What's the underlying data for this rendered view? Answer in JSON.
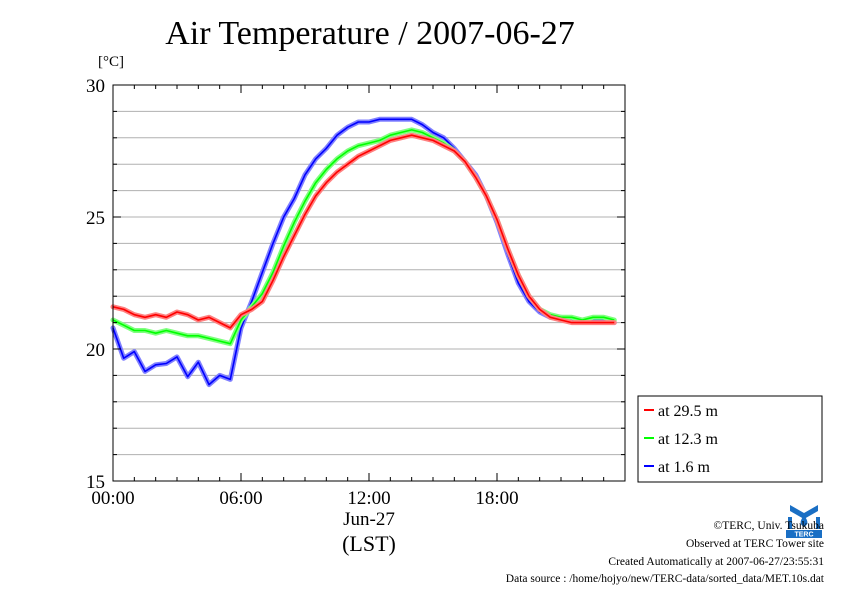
{
  "page": {
    "title": "Air Temperature / 2007-06-27",
    "unit_label": "[°C]"
  },
  "chart_data": {
    "type": "line",
    "title": "Air Temperature / 2007-06-27",
    "ylabel": "[°C]",
    "xlabel": "(LST)",
    "x_date_label": "Jun-27",
    "xlim": [
      "00:00",
      "24:00"
    ],
    "ylim": [
      15,
      30
    ],
    "x_ticks": [
      "00:00",
      "06:00",
      "12:00",
      "18:00"
    ],
    "y_ticks": [
      "15",
      "20",
      "25",
      "30"
    ],
    "grid": true,
    "legend_position": "bottom-right, outside plot",
    "x_hours": [
      0,
      0.5,
      1,
      1.5,
      2,
      2.5,
      3,
      3.5,
      4,
      4.5,
      5,
      5.5,
      6,
      6.5,
      7,
      7.5,
      8,
      8.5,
      9,
      9.5,
      10,
      10.5,
      11,
      11.5,
      12,
      12.5,
      13,
      13.5,
      14,
      14.5,
      15,
      15.5,
      16,
      16.5,
      17,
      17.5,
      18,
      18.5,
      19,
      19.5,
      20,
      20.5,
      21,
      21.5,
      22,
      22.5,
      23,
      23.5
    ],
    "series": [
      {
        "name": "at 29.5 m",
        "color": "#ff0000",
        "values": [
          21.6,
          21.5,
          21.3,
          21.2,
          21.3,
          21.2,
          21.4,
          21.3,
          21.1,
          21.2,
          21.0,
          20.8,
          21.3,
          21.5,
          21.8,
          22.6,
          23.5,
          24.3,
          25.1,
          25.8,
          26.3,
          26.7,
          27.0,
          27.3,
          27.5,
          27.7,
          27.9,
          28.0,
          28.1,
          28.0,
          27.9,
          27.7,
          27.5,
          27.1,
          26.5,
          25.8,
          24.9,
          23.8,
          22.8,
          22.0,
          21.5,
          21.2,
          21.1,
          21.0,
          21.0,
          21.0,
          21.0,
          21.0
        ]
      },
      {
        "name": "at 12.3 m",
        "color": "#00ff00",
        "values": [
          21.1,
          20.9,
          20.7,
          20.7,
          20.6,
          20.7,
          20.6,
          20.5,
          20.5,
          20.4,
          20.3,
          20.2,
          21.1,
          21.6,
          22.1,
          22.9,
          23.9,
          24.8,
          25.6,
          26.3,
          26.8,
          27.2,
          27.5,
          27.7,
          27.8,
          27.9,
          28.1,
          28.2,
          28.3,
          28.2,
          28.0,
          27.8,
          27.5,
          27.1,
          26.5,
          25.8,
          24.9,
          23.8,
          22.8,
          22.0,
          21.5,
          21.3,
          21.2,
          21.2,
          21.1,
          21.2,
          21.2,
          21.1
        ]
      },
      {
        "name": "at 1.6 m",
        "color": "#0000ff",
        "values": [
          20.8,
          20.0,
          19.7,
          19.5,
          19.2,
          19.8,
          19.5,
          19.3,
          19.3,
          19.0,
          18.8,
          19.2,
          20.8,
          21.8,
          22.9,
          24.0,
          25.0,
          25.7,
          26.6,
          27.2,
          27.6,
          28.1,
          28.4,
          28.6,
          28.6,
          28.7,
          28.7,
          28.7,
          28.7,
          28.5,
          28.2,
          28.0,
          27.6,
          27.1,
          26.6,
          25.8,
          24.8,
          23.6,
          22.5,
          21.8,
          21.4,
          21.2,
          21.2,
          21.1,
          21.1,
          21.1,
          21.1,
          21.0
        ]
      }
    ]
  },
  "footer": {
    "credit": "©TERC, Univ. Tsukuba",
    "site": "Observed at TERC Tower site",
    "created": "Created Automatically at 2007-06-27/23:55:31",
    "source": "Data source : /home/hojyo/new/TERC-data/sorted_data/MET.10s.dat",
    "logo_text": "TERC"
  }
}
